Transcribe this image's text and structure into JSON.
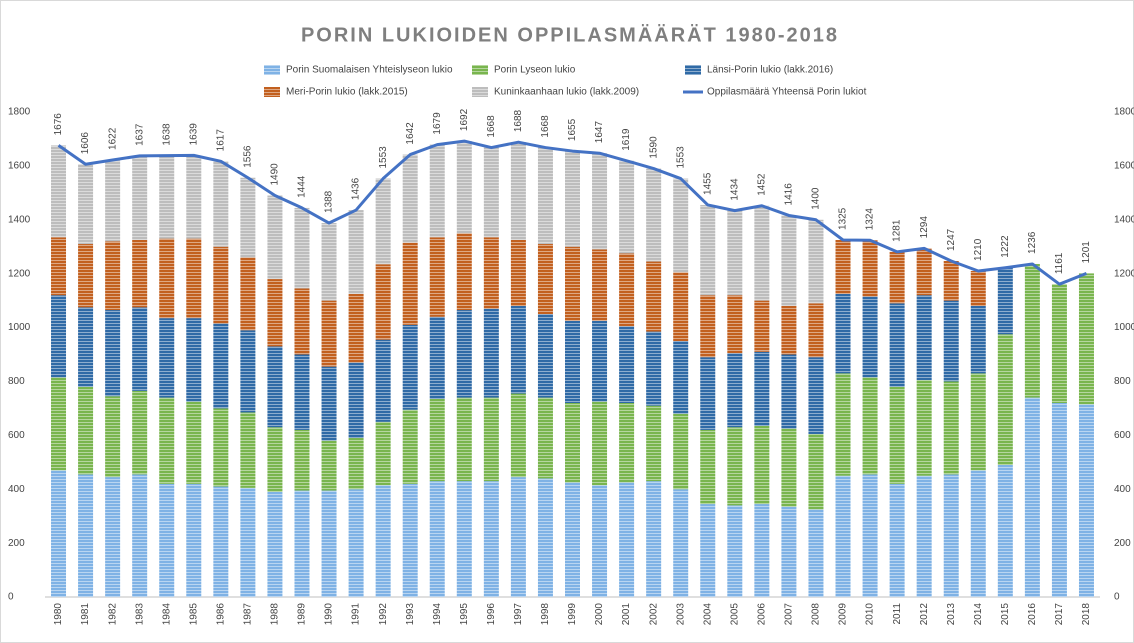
{
  "chart_data": {
    "type": "bar",
    "stacked": true,
    "title": "PORIN  LUKIOIDEN OPPILASMÄÄRÄT 1980-2018",
    "categories": [
      "1980",
      "1981",
      "1982",
      "1983",
      "1984",
      "1985",
      "1986",
      "1987",
      "1988",
      "1989",
      "1990",
      "1991",
      "1992",
      "1993",
      "1994",
      "1995",
      "1996",
      "1997",
      "1998",
      "1999",
      "2000",
      "2001",
      "2002",
      "2003",
      "2004",
      "2005",
      "2006",
      "2007",
      "2008",
      "2009",
      "2010",
      "2011",
      "2012",
      "2013",
      "2014",
      "2015",
      "2016",
      "2017",
      "2018"
    ],
    "ylim": [
      0,
      1800
    ],
    "yticks": [
      0,
      200,
      400,
      600,
      800,
      1000,
      1200,
      1400,
      1600,
      1800
    ],
    "grid": false,
    "series": [
      {
        "name": "Porin Suomalaisen Yhteislyseon lukio",
        "type": "bar",
        "color": "#7fb2e5",
        "values": [
          470,
          455,
          445,
          455,
          420,
          420,
          410,
          405,
          390,
          395,
          395,
          400,
          415,
          420,
          430,
          430,
          430,
          445,
          440,
          425,
          415,
          425,
          430,
          400,
          345,
          340,
          345,
          335,
          325,
          450,
          455,
          420,
          450,
          455,
          470,
          490,
          740,
          720,
          715
        ]
      },
      {
        "name": "Porin Lyseon lukio",
        "type": "bar",
        "color": "#79b54e",
        "values": [
          345,
          325,
          300,
          310,
          320,
          305,
          290,
          280,
          240,
          225,
          185,
          190,
          235,
          275,
          305,
          310,
          310,
          310,
          300,
          295,
          310,
          295,
          280,
          280,
          275,
          290,
          290,
          290,
          280,
          380,
          360,
          360,
          355,
          345,
          360,
          485,
          496,
          441,
          486
        ]
      },
      {
        "name": "Länsi-Porin lukio (lakk.2016)",
        "type": "bar",
        "color": "#2f6aa6",
        "values": [
          305,
          295,
          320,
          310,
          295,
          310,
          315,
          305,
          300,
          280,
          275,
          280,
          305,
          315,
          305,
          325,
          330,
          325,
          310,
          305,
          300,
          285,
          275,
          270,
          270,
          275,
          275,
          275,
          285,
          295,
          300,
          310,
          315,
          300,
          250,
          247,
          null,
          null,
          null
        ]
      },
      {
        "name": "Meri-Porin lukio  (lakk.2015)",
        "type": "bar",
        "color": "#c2601f",
        "values": [
          215,
          235,
          255,
          250,
          295,
          295,
          285,
          270,
          250,
          245,
          245,
          255,
          280,
          305,
          295,
          285,
          265,
          245,
          260,
          275,
          265,
          270,
          260,
          255,
          230,
          215,
          190,
          180,
          200,
          200,
          209,
          191,
          174,
          147,
          130,
          null,
          null,
          null,
          null
        ]
      },
      {
        "name": "Kuninkaanhaan lukio (lakk.2009)",
        "type": "bar",
        "color": "#bdbdbd",
        "values": [
          341,
          296,
          302,
          312,
          308,
          309,
          317,
          296,
          310,
          299,
          288,
          311,
          318,
          327,
          344,
          342,
          333,
          363,
          358,
          355,
          357,
          344,
          345,
          348,
          335,
          314,
          352,
          336,
          310,
          null,
          null,
          null,
          null,
          null,
          null,
          null,
          null,
          null,
          null
        ]
      },
      {
        "name": "Oppilasmäärä Yhteensä Porin lukiot",
        "type": "line",
        "color": "#4472c4",
        "values": [
          1676,
          1606,
          1622,
          1637,
          1638,
          1639,
          1617,
          1556,
          1490,
          1444,
          1388,
          1436,
          1553,
          1642,
          1679,
          1692,
          1668,
          1688,
          1668,
          1655,
          1647,
          1619,
          1590,
          1553,
          1455,
          1434,
          1452,
          1416,
          1400,
          1325,
          1324,
          1281,
          1294,
          1247,
          1210,
          1222,
          1236,
          1161,
          1201
        ]
      }
    ]
  }
}
